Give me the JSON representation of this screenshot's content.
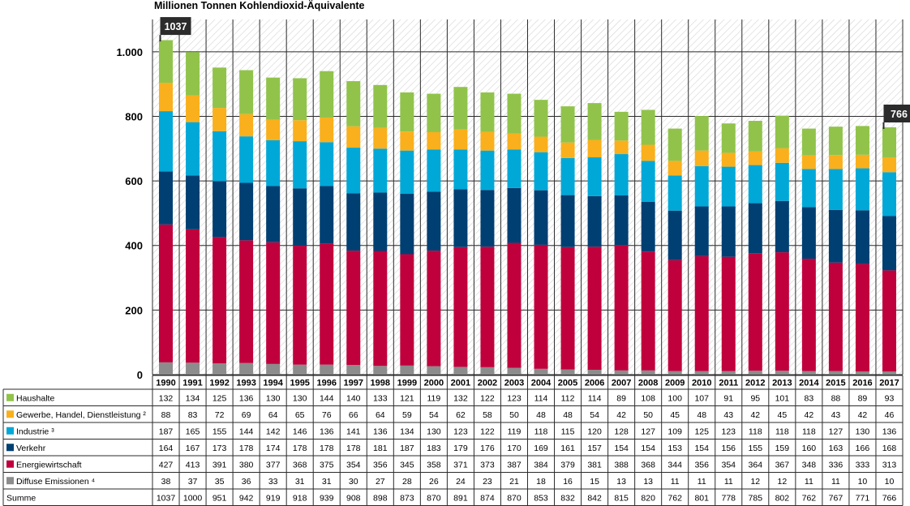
{
  "title": "Millionen Tonnen Kohlendioxid-Äquivalente",
  "chart_data": {
    "type": "bar",
    "stacked": true,
    "title": "Millionen Tonnen Kohlendioxid-Äquivalente",
    "ylim": [
      0,
      1100
    ],
    "yticks": [
      0,
      200,
      400,
      600,
      800,
      1000
    ],
    "ytick_labels": [
      "0",
      "200",
      "400",
      "600",
      "800",
      "1.000"
    ],
    "grid": true,
    "categories": [
      "1990",
      "1991",
      "1992",
      "1993",
      "1994",
      "1995",
      "1996",
      "1997",
      "1998",
      "1999",
      "2000",
      "2001",
      "2002",
      "2003",
      "2004",
      "2005",
      "2006",
      "2007",
      "2008",
      "2009",
      "2010",
      "2011",
      "2012",
      "2013",
      "2014",
      "2015",
      "2016",
      "2017"
    ],
    "series": [
      {
        "name": "Diffuse Emissionen ⁴",
        "color": "#8c8c8c",
        "values": [
          38,
          37,
          35,
          36,
          33,
          31,
          31,
          30,
          27,
          28,
          26,
          24,
          23,
          21,
          18,
          16,
          15,
          13,
          13,
          11,
          11,
          11,
          12,
          12,
          11,
          11,
          10,
          10
        ]
      },
      {
        "name": "Energiewirtschaft",
        "color": "#c0003c",
        "values": [
          427,
          413,
          391,
          380,
          377,
          368,
          375,
          354,
          356,
          345,
          358,
          371,
          373,
          387,
          384,
          379,
          381,
          388,
          368,
          344,
          356,
          354,
          364,
          367,
          348,
          336,
          333,
          313
        ]
      },
      {
        "name": "Verkehr",
        "color": "#003f72",
        "values": [
          164,
          167,
          173,
          178,
          174,
          178,
          178,
          178,
          181,
          187,
          183,
          179,
          176,
          170,
          169,
          161,
          157,
          154,
          154,
          153,
          154,
          156,
          155,
          159,
          160,
          163,
          166,
          168
        ]
      },
      {
        "name": "Industrie ³",
        "color": "#00a8d8",
        "values": [
          187,
          165,
          155,
          144,
          142,
          146,
          136,
          141,
          136,
          134,
          130,
          123,
          122,
          119,
          118,
          115,
          120,
          128,
          127,
          109,
          125,
          123,
          118,
          118,
          118,
          127,
          130,
          136
        ]
      },
      {
        "name": "Gewerbe, Handel, Dienstleistung ²",
        "color": "#f9b01c",
        "values": [
          88,
          83,
          72,
          69,
          64,
          65,
          76,
          66,
          64,
          59,
          54,
          62,
          58,
          50,
          48,
          48,
          54,
          42,
          50,
          45,
          48,
          43,
          42,
          45,
          42,
          43,
          42,
          46
        ]
      },
      {
        "name": "Haushalte",
        "color": "#91c34b",
        "values": [
          132,
          134,
          125,
          136,
          130,
          130,
          144,
          140,
          133,
          121,
          119,
          132,
          122,
          123,
          114,
          112,
          114,
          89,
          108,
          100,
          107,
          91,
          95,
          101,
          83,
          88,
          89,
          93
        ]
      }
    ],
    "sums": [
      1037,
      1000,
      951,
      942,
      919,
      918,
      939,
      908,
      898,
      873,
      870,
      891,
      874,
      870,
      853,
      832,
      842,
      815,
      820,
      762,
      801,
      778,
      785,
      802,
      762,
      767,
      771,
      766
    ],
    "sum_label": "Summe",
    "callouts": [
      {
        "category": "1990",
        "value": "1037"
      },
      {
        "category": "2017",
        "value": "766"
      }
    ]
  }
}
